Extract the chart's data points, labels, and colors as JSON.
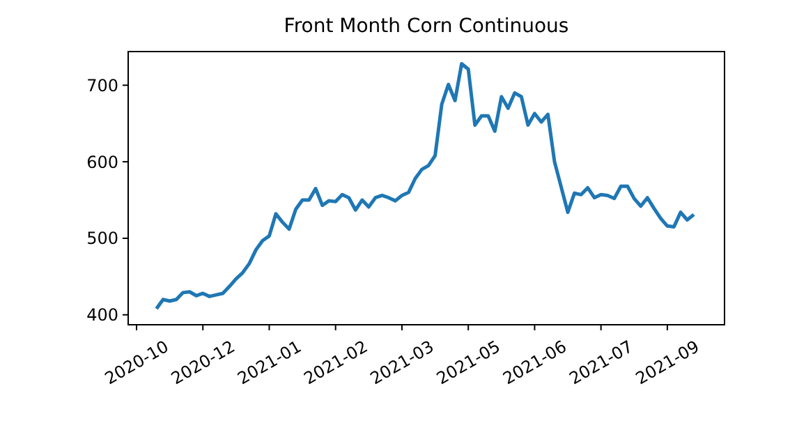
{
  "chart_data": {
    "type": "line",
    "title": "Front Month Corn Continuous",
    "categories": [
      "2020-10",
      null,
      null,
      null,
      null,
      null,
      null,
      null,
      null,
      null,
      "2020-12",
      null,
      null,
      null,
      null,
      null,
      null,
      null,
      null,
      null,
      "2021-01",
      null,
      null,
      null,
      null,
      null,
      null,
      null,
      null,
      null,
      "2021-02",
      null,
      null,
      null,
      null,
      null,
      null,
      null,
      null,
      null,
      "2021-03",
      null,
      null,
      null,
      null,
      null,
      null,
      null,
      null,
      null,
      "2021-05",
      null,
      null,
      null,
      null,
      null,
      null,
      null,
      null,
      null,
      "2021-06",
      null,
      null,
      null,
      null,
      null,
      null,
      null,
      null,
      null,
      "2021-07",
      null,
      null,
      null,
      null,
      null,
      null,
      null,
      null,
      null,
      "2021-09",
      null,
      null,
      null,
      null
    ],
    "ylim": [
      387,
      744
    ],
    "yticks": [
      400,
      500,
      600,
      700
    ],
    "grid": false,
    "legend": false,
    "line_style": "solid",
    "marker": "none",
    "series": [
      {
        "color": "#1f77b4",
        "values": [
          null,
          null,
          null,
          408,
          420,
          418,
          420,
          429,
          430,
          425,
          428,
          424,
          426,
          428,
          437,
          447,
          455,
          467,
          485,
          497,
          503,
          532,
          521,
          512,
          538,
          550,
          550,
          565,
          543,
          549,
          548,
          557,
          553,
          537,
          550,
          541,
          553,
          556,
          553,
          549,
          556,
          560,
          578,
          590,
          595,
          608,
          675,
          701,
          680,
          728,
          721,
          648,
          660,
          660,
          640,
          685,
          670,
          690,
          685,
          648,
          663,
          652,
          662,
          600,
          567,
          534,
          559,
          557,
          566,
          553,
          557,
          556,
          552,
          568,
          568,
          552,
          542,
          553,
          539,
          526,
          516,
          515,
          534,
          524,
          531
        ]
      }
    ]
  }
}
